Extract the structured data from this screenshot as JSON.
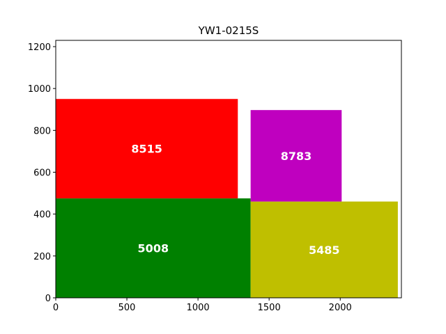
{
  "chart_data": {
    "type": "packing",
    "title": "YW1-0215S",
    "xlabel": "",
    "ylabel": "",
    "xlim": [
      0,
      2430
    ],
    "ylim": [
      0,
      1230
    ],
    "x_ticks": [
      0,
      500,
      1000,
      1500,
      2000
    ],
    "y_ticks": [
      0,
      200,
      400,
      600,
      800,
      1000,
      1200
    ],
    "grid": false,
    "rectangles": [
      {
        "label": "5008",
        "x": 0,
        "y": 0,
        "width": 1370,
        "height": 475,
        "color": "#008000"
      },
      {
        "label": "5485",
        "x": 1370,
        "y": 0,
        "width": 1035,
        "height": 460,
        "color": "#bfbf00"
      },
      {
        "label": "8515",
        "x": 0,
        "y": 475,
        "width": 1280,
        "height": 475,
        "color": "#ff0000"
      },
      {
        "label": "8783",
        "x": 1370,
        "y": 460,
        "width": 640,
        "height": 437,
        "color": "#bf00bf"
      }
    ]
  }
}
